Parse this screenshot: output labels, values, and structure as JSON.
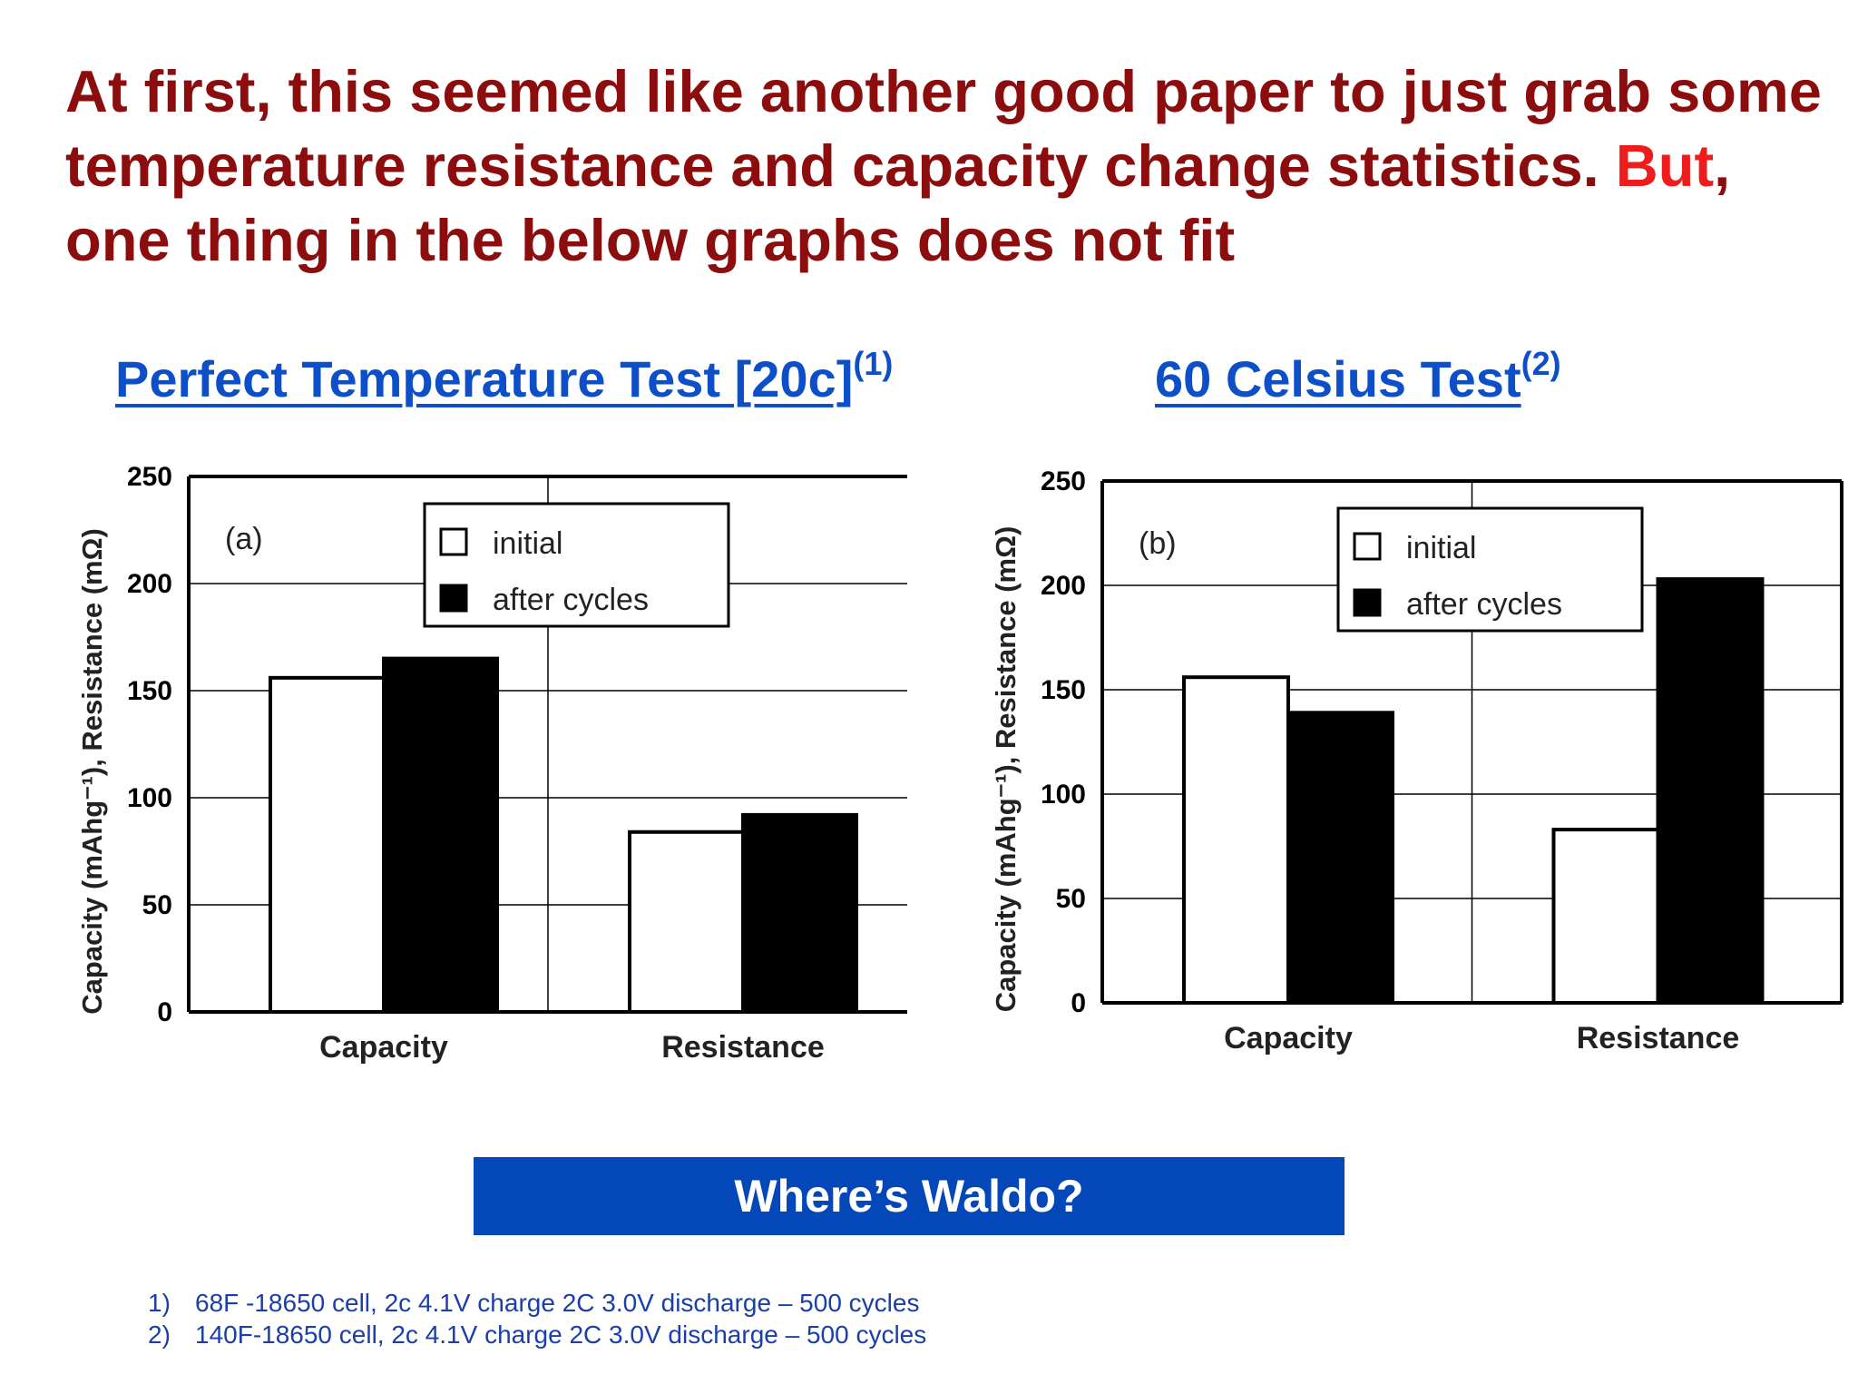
{
  "headline": {
    "part1": "At first, this seemed like another good paper to just grab some temperature resistance and capacity change statistics. ",
    "highlight": "But",
    "part2": ", one thing in the below graphs does not fit"
  },
  "subheads": {
    "a_text": "Perfect Temperature Test [20c]",
    "a_sup": "(1)",
    "b_text": "60 Celsius Test",
    "b_sup": "(2)"
  },
  "banner": "Where’s Waldo?",
  "footnotes": [
    {
      "num": "1)",
      "text": "68F -18650 cell, 2c 4.1V charge 2C 3.0V discharge – 500 cycles"
    },
    {
      "num": "2)",
      "text": "140F-18650 cell, 2c 4.1V charge 2C 3.0V discharge – 500 cycles"
    }
  ],
  "chart_data": [
    {
      "type": "bar",
      "panel_label": "(a)",
      "categories": [
        "Capacity",
        "Resistance"
      ],
      "series": [
        {
          "name": "initial",
          "color": "#ffffff",
          "values": [
            156,
            84
          ]
        },
        {
          "name": "after cycles",
          "color": "#000000",
          "values": [
            165,
            92
          ]
        }
      ],
      "ylabel": "Capacity (mAhg⁻¹), Resistance (mΩ)",
      "ylim": [
        0,
        250
      ],
      "yticks": [
        0,
        50,
        100,
        150,
        200,
        250
      ],
      "grid": true,
      "legend": "top-center"
    },
    {
      "type": "bar",
      "panel_label": "(b)",
      "categories": [
        "Capacity",
        "Resistance"
      ],
      "series": [
        {
          "name": "initial",
          "color": "#ffffff",
          "values": [
            156,
            83
          ]
        },
        {
          "name": "after cycles",
          "color": "#000000",
          "values": [
            139,
            203
          ]
        }
      ],
      "ylabel": "Capacity (mAhg⁻¹), Resistance (mΩ)",
      "ylim": [
        0,
        250
      ],
      "yticks": [
        0,
        50,
        100,
        150,
        200,
        250
      ],
      "grid": true,
      "legend": "top-center"
    }
  ]
}
